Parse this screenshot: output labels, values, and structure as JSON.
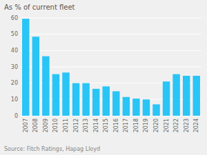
{
  "chart_data": {
    "type": "bar",
    "ylabel": "As % of current fleet",
    "annotations": [
      "Source: Fitch Ratings, Hapag Lloyd"
    ],
    "categories": [
      "2007",
      "2008",
      "2009",
      "2010",
      "2011",
      "2012",
      "2013",
      "2014",
      "2015",
      "2016",
      "2017",
      "2018",
      "2019",
      "2020",
      "2021",
      "2022",
      "2023",
      "2024"
    ],
    "values": [
      59.5,
      48.5,
      36.5,
      25.5,
      26.5,
      20.0,
      20.0,
      16.5,
      18.0,
      15.0,
      11.5,
      10.5,
      10.0,
      7.0,
      21.0,
      25.5,
      24.5,
      24.5
    ],
    "color": "#29C5F6",
    "ylim": [
      0,
      60
    ],
    "yticks": [
      0,
      10,
      20,
      30,
      40,
      50,
      60
    ],
    "grid": true
  }
}
